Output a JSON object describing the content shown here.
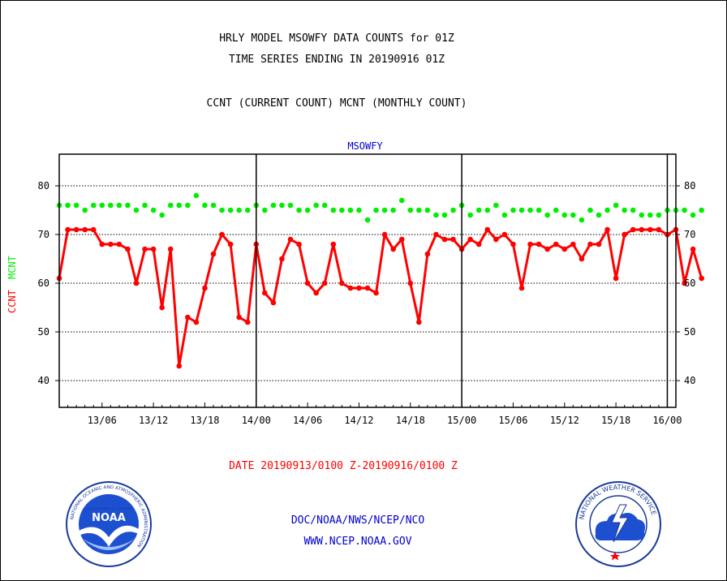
{
  "header": {
    "title_line1": "HRLY MODEL MSOWFY DATA COUNTS for 01Z",
    "title_line2": "TIME SERIES ENDING IN 20190916 01Z",
    "legend_line": "CCNT (CURRENT COUNT) MCNT (MONTHLY COUNT)"
  },
  "footer": {
    "date_range": "DATE 20190913/0100 Z-20190916/0100 Z",
    "credit": "DOC/NOAA/NWS/NCEP/NCO",
    "url": "WWW.NCEP.NOAA.GOV"
  },
  "logos": {
    "noaa_text": "NOAA",
    "noaa_ring": "NATIONAL OCEANIC AND ATMOSPHERIC ADMINISTRATION",
    "noaa_ring_bottom": "U.S. DEPARTMENT OF COMMERCE",
    "nws_ring": "NATIONAL WEATHER SERVICE"
  },
  "colors": {
    "ccnt": "#ff0000",
    "mcnt": "#00ee00",
    "plot_title": "#0000cc"
  },
  "chart_data": {
    "type": "line",
    "title": "MSOWFY",
    "ylabel_ccnt": "CCNT",
    "ylabel_mcnt": "MCNT",
    "ylim": [
      34.5,
      86.5
    ],
    "yticks": [
      40,
      50,
      60,
      70,
      80
    ],
    "x_tick_labels": [
      "13/06",
      "13/12",
      "13/18",
      "14/00",
      "14/06",
      "14/12",
      "14/18",
      "15/00",
      "15/06",
      "15/12",
      "15/18",
      "16/00"
    ],
    "x_tick_hours": [
      5,
      11,
      17,
      23,
      29,
      35,
      41,
      47,
      53,
      59,
      65,
      71
    ],
    "day_boundaries_hours": [
      23,
      47,
      71
    ],
    "x_range_hours": [
      0,
      72
    ],
    "x_start": "20190913/0100",
    "grid": "horizontal dotted",
    "series": [
      {
        "name": "CCNT",
        "color": "#ff0000",
        "values": [
          61,
          71,
          71,
          71,
          71,
          68,
          68,
          68,
          67,
          60,
          67,
          67,
          55,
          67,
          43,
          53,
          52,
          59,
          66,
          70,
          68,
          53,
          52,
          68,
          58,
          56,
          65,
          69,
          68,
          60,
          58,
          60,
          68,
          60,
          59,
          59,
          59,
          58,
          70,
          67,
          69,
          60,
          52,
          66,
          70,
          69,
          69,
          67,
          69,
          68,
          71,
          69,
          70,
          68,
          59,
          68,
          68,
          67,
          68,
          67,
          68,
          65,
          68,
          68,
          71,
          61,
          70,
          71,
          71,
          71,
          71,
          70,
          71,
          60,
          67,
          61
        ]
      },
      {
        "name": "MCNT",
        "color": "#00ee00",
        "values": [
          76,
          76,
          76,
          75,
          76,
          76,
          76,
          76,
          76,
          75,
          76,
          75,
          74,
          76,
          76,
          76,
          78,
          76,
          76,
          75,
          75,
          75,
          75,
          76,
          75,
          76,
          76,
          76,
          75,
          75,
          76,
          76,
          75,
          75,
          75,
          75,
          73,
          75,
          75,
          75,
          77,
          75,
          75,
          75,
          74,
          74,
          75,
          76,
          74,
          75,
          75,
          76,
          74,
          75,
          75,
          75,
          75,
          74,
          75,
          74,
          74,
          73,
          75,
          74,
          75,
          76,
          75,
          75,
          74,
          74,
          74,
          75,
          75,
          75,
          74,
          75
        ]
      }
    ]
  }
}
